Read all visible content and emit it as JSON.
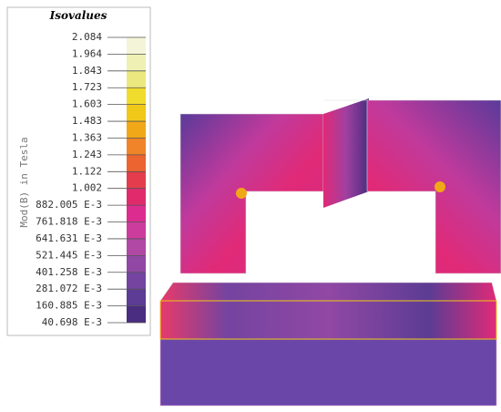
{
  "legend": {
    "title": "Isovalues",
    "quantity": "Mod(B) in Tesla",
    "levels": [
      "2.084",
      "1.964",
      "1.843",
      "1.723",
      "1.603",
      "1.483",
      "1.363",
      "1.243",
      "1.122",
      "1.002",
      "882.005 E-3",
      "761.818 E-3",
      "641.631 E-3",
      "521.445 E-3",
      "401.258 E-3",
      "281.072 E-3",
      "160.885 E-3",
      "40.698 E-3"
    ],
    "band_colors": [
      "#f4f4d8",
      "#eef0b4",
      "#ece880",
      "#f0dc2c",
      "#f0c818",
      "#f0a818",
      "#f08428",
      "#ec6430",
      "#e43c4c",
      "#e02a6c",
      "#dc2c90",
      "#cc3c9c",
      "#b048a4",
      "#9048a4",
      "#7444a0",
      "#5c3c94",
      "#4a2c80"
    ]
  }
}
